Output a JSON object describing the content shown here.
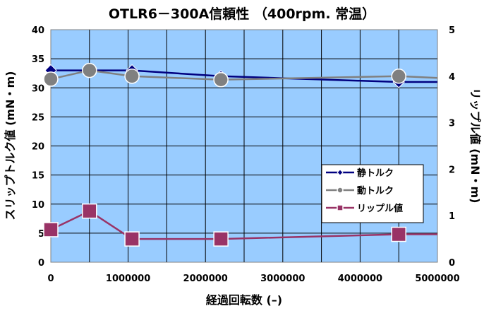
{
  "chart_data": {
    "type": "line",
    "title": "OTLR6－300A信頼性 （400rpm. 常温）",
    "xlabel": "経過回転数 (–)",
    "ylabel_left": "スリップトルク値 (mN・m)",
    "ylabel_right": "リップル値 (mN・m)",
    "xlim": [
      0,
      5000000
    ],
    "ylim_left": [
      0,
      40
    ],
    "ylim_right": [
      0,
      5
    ],
    "x_ticks": [
      "0",
      "1000000",
      "2000000",
      "3000000",
      "4000000",
      "5000000"
    ],
    "y_ticks_left": [
      "0",
      "5",
      "10",
      "15",
      "20",
      "25",
      "30",
      "35",
      "40"
    ],
    "y_ticks_right": [
      "0",
      "1",
      "2",
      "3",
      "4",
      "5"
    ],
    "grid": true,
    "legend_position": "right",
    "series": [
      {
        "name": "静トルク",
        "axis": "left",
        "color": "#000080",
        "marker": "diamond",
        "points": [
          [
            0,
            33
          ],
          [
            500000,
            33
          ],
          [
            1050000,
            33
          ],
          [
            2200000,
            32
          ],
          [
            4500000,
            31
          ],
          [
            5000000,
            31
          ]
        ]
      },
      {
        "name": "動トルク",
        "axis": "left",
        "color": "#808080",
        "marker": "circle",
        "points": [
          [
            0,
            31.5
          ],
          [
            500000,
            33
          ],
          [
            1050000,
            32
          ],
          [
            2200000,
            31.4
          ],
          [
            4500000,
            32
          ],
          [
            5000000,
            31.7
          ]
        ]
      },
      {
        "name": "リップル値",
        "axis": "right",
        "color": "#993366",
        "marker": "square",
        "points": [
          [
            0,
            0.7
          ],
          [
            500000,
            1.1
          ],
          [
            1050000,
            0.5
          ],
          [
            2200000,
            0.5
          ],
          [
            4500000,
            0.6
          ],
          [
            5000000,
            0.6
          ]
        ]
      }
    ]
  }
}
